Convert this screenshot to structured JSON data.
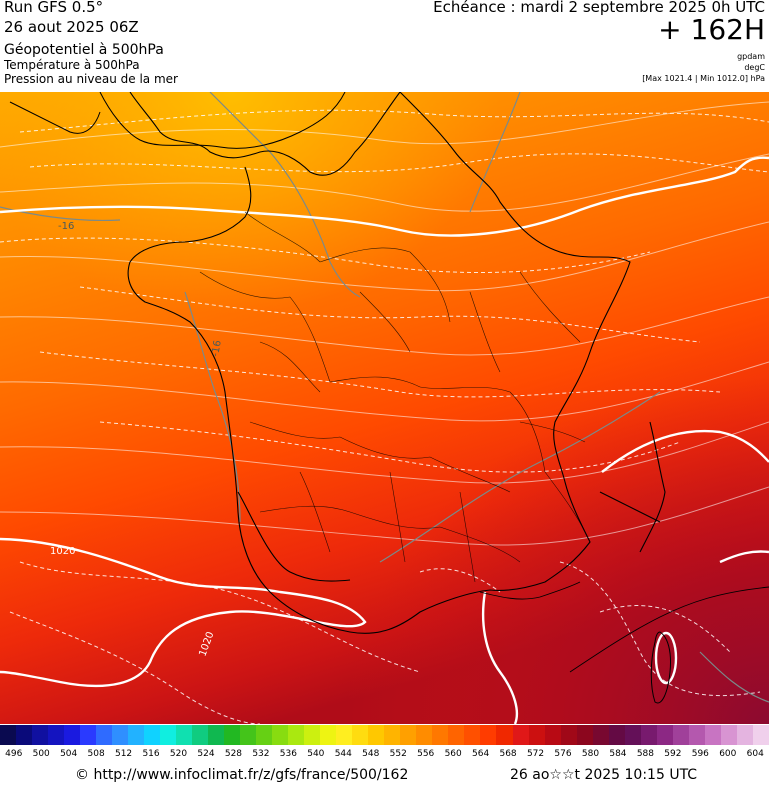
{
  "header": {
    "run": "Run GFS 0.5°",
    "date": "26 aout 2025 06Z",
    "layer_geopotential": "Géopotentiel à 500hPa",
    "layer_temperature": "Température à 500hPa",
    "layer_pressure": "Pression au niveau de la mer",
    "echeance": "Echéance : mardi 2 septembre 2025 0h UTC",
    "hours": "+ 162H",
    "unit_geopot": "gpdam",
    "unit_temp": "degC",
    "pressure_range": "[Max 1021.4 | Min 1012.0] hPa"
  },
  "map": {
    "contour_labels": {
      "t1": "-16",
      "t2": "-16",
      "p1": "1020",
      "p2": "1020"
    },
    "colors": {
      "isobar": "#ffffff",
      "border": "#000000",
      "isotherm": "#7a8a8a"
    }
  },
  "scale": {
    "labels": [
      "496",
      "500",
      "504",
      "508",
      "512",
      "516",
      "520",
      "524",
      "528",
      "532",
      "536",
      "540",
      "544",
      "548",
      "552",
      "556",
      "560",
      "564",
      "568",
      "572",
      "576",
      "580",
      "584",
      "588",
      "592",
      "596",
      "600",
      "604"
    ],
    "colors": [
      "#0a0a50",
      "#0a0a7a",
      "#1010a0",
      "#1414c0",
      "#1a1ae0",
      "#2a3aff",
      "#2f6bff",
      "#2f8fff",
      "#22b2ff",
      "#10d2ff",
      "#10eee0",
      "#10e0b0",
      "#10cc80",
      "#10b850",
      "#22b822",
      "#44c41a",
      "#66d014",
      "#88dc10",
      "#aae810",
      "#ccf010",
      "#eef412",
      "#ffee20",
      "#ffdc10",
      "#ffc800",
      "#ffb400",
      "#ffa000",
      "#ff8c00",
      "#ff7800",
      "#ff6400",
      "#ff5000",
      "#ff3c00",
      "#f02800",
      "#e01818",
      "#cc1010",
      "#b80a14",
      "#a00818",
      "#8c061e",
      "#780830",
      "#640a44",
      "#641058",
      "#781a6e",
      "#8c2884",
      "#a0409a",
      "#b458ae",
      "#c874c2",
      "#d894d2",
      "#e4b4e0",
      "#f0d0ec"
    ]
  },
  "footer": {
    "url": "© http://www.infoclimat.fr/z/gfs/france/500/162",
    "timestamp": "26 ao☆☆t 2025 10:15 UTC"
  }
}
